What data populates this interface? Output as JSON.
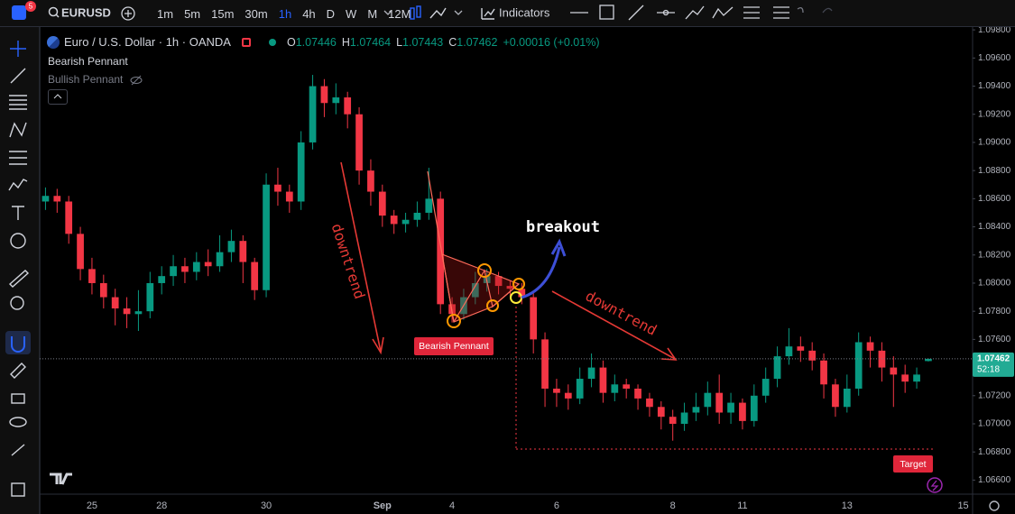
{
  "toolbar": {
    "badge": "5",
    "symbol": "EURUSD",
    "timeframes": [
      "1m",
      "5m",
      "15m",
      "30m",
      "1h",
      "4h",
      "D",
      "W",
      "M",
      "12M"
    ],
    "active_timeframe": "1h",
    "indicators": "Indicators"
  },
  "indicators_legend": [
    "Bearish Pennant",
    "Bullish Pennant"
  ],
  "annotations": {
    "downtrend_1": "downtrend",
    "breakout": "breakout",
    "pattern_label": "Bearish Pennant",
    "downtrend_2": "downtrend",
    "target": "Target"
  },
  "chart_data": {
    "type": "candlestick",
    "title": "Euro / U.S. Dollar · 1h · OANDA",
    "change": "+0.00016 (+0.01%)",
    "ohlc_keys": [
      "O",
      "H",
      "L",
      "C"
    ],
    "countdown": "52:18",
    "up_color": "#089981",
    "down_color": "#f23645",
    "ylim": [
      1.065,
      1.0982
    ],
    "yticks": [
      {
        "value": 1.066,
        "label": "1.06600"
      },
      {
        "value": 1.068,
        "label": "1.06800"
      },
      {
        "value": 1.07,
        "label": "1.07000"
      },
      {
        "value": 1.072,
        "label": "1.07200"
      },
      {
        "value": 1.074,
        "label": "1.07400"
      },
      {
        "value": 1.076,
        "label": "1.07600"
      },
      {
        "value": 1.078,
        "label": "1.07800"
      },
      {
        "value": 1.08,
        "label": "1.08000"
      },
      {
        "value": 1.082,
        "label": "1.08200"
      },
      {
        "value": 1.084,
        "label": "1.08400"
      },
      {
        "value": 1.086,
        "label": "1.08600"
      },
      {
        "value": 1.088,
        "label": "1.08800"
      },
      {
        "value": 1.09,
        "label": "1.09000"
      },
      {
        "value": 1.092,
        "label": "1.09200"
      },
      {
        "value": 1.094,
        "label": "1.09400"
      },
      {
        "value": 1.096,
        "label": "1.09600"
      },
      {
        "value": 1.098,
        "label": "1.09800"
      }
    ],
    "categories": [
      null,
      null,
      null,
      null,
      "25",
      null,
      null,
      null,
      null,
      null,
      "28",
      null,
      null,
      null,
      null,
      null,
      null,
      null,
      null,
      "30",
      null,
      null,
      null,
      null,
      null,
      null,
      null,
      null,
      null,
      "Sep",
      null,
      null,
      null,
      null,
      null,
      "4",
      null,
      null,
      null,
      null,
      null,
      null,
      null,
      null,
      "6",
      null,
      null,
      null,
      null,
      null,
      null,
      null,
      null,
      null,
      "8",
      null,
      null,
      null,
      null,
      null,
      "11",
      null,
      null,
      null,
      null,
      null,
      null,
      null,
      null,
      "13",
      null,
      null,
      null,
      null,
      null,
      null,
      null,
      null,
      null,
      "15"
    ],
    "open": [
      1.0858,
      1.0862,
      1.0858,
      1.0835,
      1.081,
      1.08,
      1.079,
      1.0782,
      1.0778,
      1.078,
      1.08,
      1.0805,
      1.0812,
      1.0808,
      1.0815,
      1.0812,
      1.0822,
      1.083,
      1.0815,
      1.0795,
      1.087,
      1.0865,
      1.0858,
      1.09,
      1.094,
      1.0928,
      1.0932,
      1.092,
      1.088,
      1.0865,
      1.0848,
      1.0842,
      1.0845,
      1.085,
      1.086,
      1.0785,
      1.0778,
      1.079,
      1.08,
      1.0805,
      1.0798,
      1.0796,
      1.079,
      1.076,
      1.0725,
      1.0722,
      1.0718,
      1.0732,
      1.074,
      1.0722,
      1.0728,
      1.0725,
      1.0718,
      1.0712,
      1.0705,
      1.07,
      1.0708,
      1.0712,
      1.0722,
      1.0708,
      1.0715,
      1.0702,
      1.072,
      1.0732,
      1.0748,
      1.0755,
      1.0752,
      1.0745,
      1.0728,
      1.0712,
      1.0725,
      1.0758,
      1.0752,
      1.074,
      1.0735,
      1.073,
      1.07446,
      null,
      null,
      null
    ],
    "high": [
      1.0868,
      1.0867,
      1.0862,
      1.084,
      1.0818,
      1.0806,
      1.0796,
      1.079,
      1.0795,
      1.0808,
      1.0812,
      1.082,
      1.0818,
      1.0822,
      1.0824,
      1.0834,
      1.0838,
      1.0834,
      1.0818,
      1.0878,
      1.0882,
      1.087,
      1.0908,
      1.0948,
      1.0945,
      1.0942,
      1.0936,
      1.0925,
      1.0888,
      1.087,
      1.0852,
      1.085,
      1.0858,
      1.0882,
      1.0865,
      1.079,
      1.0796,
      1.0808,
      1.081,
      1.0808,
      1.0802,
      1.08,
      1.0794,
      1.0765,
      1.0732,
      1.0728,
      1.074,
      1.075,
      1.0745,
      1.0735,
      1.0732,
      1.0728,
      1.0722,
      1.0716,
      1.071,
      1.0715,
      1.0722,
      1.073,
      1.0735,
      1.0722,
      1.0718,
      1.0728,
      1.074,
      1.0755,
      1.0768,
      1.0762,
      1.0758,
      1.075,
      1.0732,
      1.0735,
      1.0765,
      1.0762,
      1.0758,
      1.0748,
      1.0742,
      1.074,
      1.07464,
      null,
      null,
      null
    ],
    "low": [
      1.0852,
      1.085,
      1.0828,
      1.0802,
      1.0792,
      1.0782,
      1.077,
      1.0768,
      1.0766,
      1.0775,
      1.0792,
      1.0798,
      1.08,
      1.0802,
      1.0805,
      1.0808,
      1.0815,
      1.08,
      1.0788,
      1.079,
      1.0855,
      1.085,
      1.0852,
      1.0895,
      1.0918,
      1.092,
      1.091,
      1.087,
      1.0855,
      1.084,
      1.0835,
      1.0836,
      1.084,
      1.0845,
      1.0778,
      1.0772,
      1.0774,
      1.0785,
      1.0794,
      1.0792,
      1.079,
      1.0785,
      1.075,
      1.0712,
      1.0712,
      1.071,
      1.0714,
      1.0726,
      1.0715,
      1.0716,
      1.0718,
      1.071,
      1.0705,
      1.0696,
      1.0688,
      1.0695,
      1.0702,
      1.0706,
      1.07,
      1.07,
      1.0696,
      1.0698,
      1.0715,
      1.0726,
      1.0742,
      1.0744,
      1.0738,
      1.0718,
      1.0705,
      1.0708,
      1.072,
      1.074,
      1.073,
      1.0712,
      1.0722,
      1.0725,
      1.07443,
      null,
      null,
      null
    ],
    "close": [
      1.0862,
      1.0858,
      1.0835,
      1.081,
      1.08,
      1.079,
      1.0782,
      1.0778,
      1.078,
      1.08,
      1.0805,
      1.0812,
      1.0808,
      1.0815,
      1.0812,
      1.0822,
      1.083,
      1.0815,
      1.0795,
      1.087,
      1.0865,
      1.0858,
      1.09,
      1.094,
      1.0928,
      1.0932,
      1.092,
      1.088,
      1.0865,
      1.0848,
      1.0842,
      1.0845,
      1.085,
      1.086,
      1.0785,
      1.0778,
      1.079,
      1.08,
      1.0805,
      1.0798,
      1.0796,
      1.079,
      1.076,
      1.0725,
      1.0722,
      1.0718,
      1.0732,
      1.074,
      1.0722,
      1.0728,
      1.0725,
      1.0718,
      1.0712,
      1.0705,
      1.07,
      1.0708,
      1.0712,
      1.0722,
      1.0708,
      1.0715,
      1.0702,
      1.072,
      1.0732,
      1.0748,
      1.0755,
      1.0752,
      1.0745,
      1.0728,
      1.0712,
      1.0725,
      1.0758,
      1.0752,
      1.074,
      1.0735,
      1.073,
      1.0735,
      1.07462,
      null,
      null,
      null
    ]
  }
}
